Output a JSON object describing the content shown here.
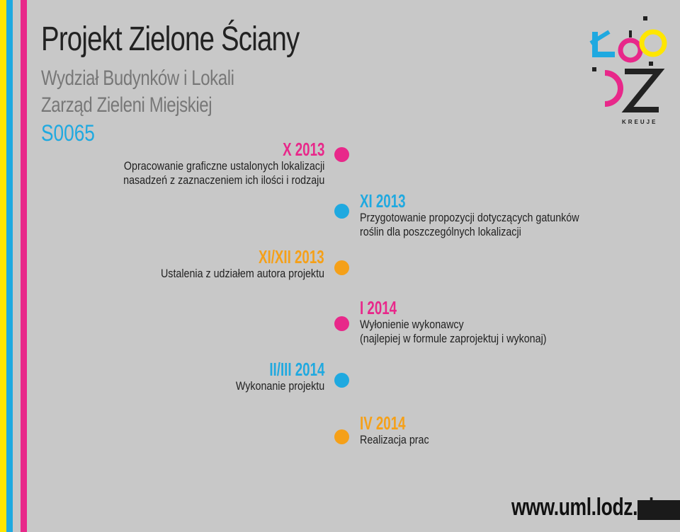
{
  "colors": {
    "background": "#c8c8c8",
    "yellow": "#ffe600",
    "magenta": "#e8288a",
    "cyan": "#1fa9e0",
    "orange": "#f5a018",
    "dark": "#222222"
  },
  "header": {
    "title": "Projekt Zielone Ściany",
    "line1": "Wydział Budynków i Lokali",
    "line2": "Zarząd Zieleni Miejskiej",
    "code": "S0065"
  },
  "timeline": [
    {
      "date": "X 2013",
      "color": "#e8288a",
      "desc": [
        "Opracowanie graficzne ustalonych lokalizacji",
        "nasadzeń z zaznaczeniem ich ilości i rodzaju"
      ]
    },
    {
      "date": "XI 2013",
      "color": "#1fa9e0",
      "desc": [
        "Przygotowanie propozycji dotyczących gatunków",
        "roślin dla poszczególnych lokalizacji"
      ]
    },
    {
      "date": "XI/XII 2013",
      "color": "#f5a018",
      "desc": [
        "Ustalenia z udziałem autora projektu"
      ]
    },
    {
      "date": "I 2014",
      "color": "#e8288a",
      "desc": [
        "Wyłonienie wykonawcy",
        "(najlepiej w formule zaprojektuj i wykonaj)"
      ]
    },
    {
      "date": "II/III 2014",
      "color": "#1fa9e0",
      "desc": [
        "Wykonanie projektu"
      ]
    },
    {
      "date": "IV 2014",
      "color": "#f5a018",
      "desc": [
        "Realizacja prac"
      ]
    }
  ],
  "logo": {
    "caption": "KREUJE",
    "icon": "lodz-kreuje-logo-icon"
  },
  "footer": {
    "url": "www.uml.lodz.pl"
  }
}
